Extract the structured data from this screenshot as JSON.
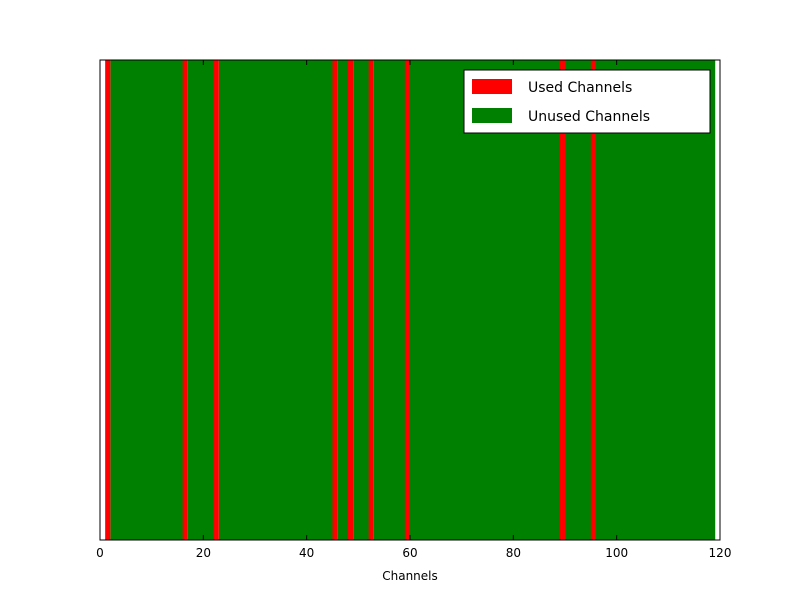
{
  "chart_data": {
    "type": "bar",
    "title": "",
    "xlabel": "Channels",
    "ylabel": "",
    "xlim": [
      0,
      120
    ],
    "ylim": [
      0,
      1
    ],
    "xticks": [
      0,
      20,
      40,
      60,
      80,
      100,
      120
    ],
    "yticks": [],
    "grid": false,
    "legend_position": "top-right",
    "bar_width": 1,
    "series": [
      {
        "name": "Used Channels",
        "color": "#ff0000",
        "x": [
          1,
          16,
          22,
          45,
          48,
          52,
          59,
          89,
          95
        ],
        "values": [
          1,
          1,
          1,
          1,
          1,
          1,
          1,
          1,
          1
        ]
      },
      {
        "name": "Unused Channels",
        "color": "#008000",
        "x_range": [
          2,
          118
        ],
        "exclude": [
          16,
          22,
          45,
          48,
          52,
          59,
          89,
          95
        ],
        "value": 1
      }
    ]
  }
}
